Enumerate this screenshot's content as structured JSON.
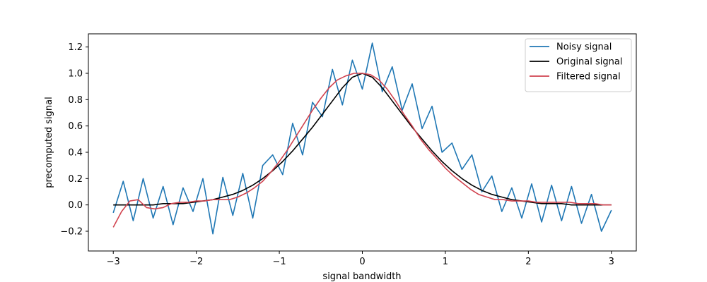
{
  "chart_data": {
    "type": "line",
    "title": "",
    "xlabel": "signal bandwidth",
    "ylabel": "precomputed signal",
    "xlim": [
      -3.3,
      3.3
    ],
    "ylim": [
      -0.35,
      1.3
    ],
    "xticks": [
      -3,
      -2,
      -1,
      0,
      1,
      2,
      3
    ],
    "xtick_labels": [
      "−3",
      "−2",
      "−1",
      "0",
      "1",
      "2",
      "3"
    ],
    "yticks": [
      -0.2,
      0.0,
      0.2,
      0.4,
      0.6,
      0.8,
      1.0,
      1.2
    ],
    "ytick_labels": [
      "−0.2",
      "0.0",
      "0.2",
      "0.4",
      "0.6",
      "0.8",
      "1.0",
      "1.2"
    ],
    "legend_position": "top-right",
    "grid": false,
    "series": [
      {
        "name": "Noisy signal",
        "color": "#1f77b4",
        "x": [
          -3.0,
          -2.88,
          -2.76,
          -2.64,
          -2.52,
          -2.4,
          -2.28,
          -2.16,
          -2.04,
          -1.92,
          -1.8,
          -1.68,
          -1.56,
          -1.44,
          -1.32,
          -1.2,
          -1.08,
          -0.96,
          -0.84,
          -0.72,
          -0.6,
          -0.48,
          -0.36,
          -0.24,
          -0.12,
          0.0,
          0.12,
          0.24,
          0.36,
          0.48,
          0.6,
          0.72,
          0.84,
          0.96,
          1.08,
          1.2,
          1.32,
          1.44,
          1.56,
          1.68,
          1.8,
          1.92,
          2.04,
          2.16,
          2.28,
          2.4,
          2.52,
          2.64,
          2.76,
          2.88,
          3.0
        ],
        "y": [
          -0.06,
          0.18,
          -0.12,
          0.2,
          -0.1,
          0.14,
          -0.15,
          0.13,
          -0.05,
          0.2,
          -0.22,
          0.21,
          -0.08,
          0.24,
          -0.1,
          0.3,
          0.38,
          0.23,
          0.62,
          0.38,
          0.78,
          0.67,
          1.03,
          0.76,
          1.1,
          0.88,
          1.23,
          0.86,
          1.05,
          0.72,
          0.92,
          0.58,
          0.75,
          0.4,
          0.47,
          0.27,
          0.38,
          0.1,
          0.22,
          -0.05,
          0.13,
          -0.1,
          0.16,
          -0.13,
          0.15,
          -0.12,
          0.14,
          -0.14,
          0.08,
          -0.2,
          -0.04
        ]
      },
      {
        "name": "Original signal",
        "color": "#000000",
        "x": [
          -3.0,
          -2.88,
          -2.76,
          -2.64,
          -2.52,
          -2.4,
          -2.28,
          -2.16,
          -2.04,
          -1.92,
          -1.8,
          -1.68,
          -1.56,
          -1.44,
          -1.32,
          -1.2,
          -1.08,
          -0.96,
          -0.84,
          -0.72,
          -0.6,
          -0.48,
          -0.36,
          -0.24,
          -0.12,
          0.0,
          0.12,
          0.24,
          0.36,
          0.48,
          0.6,
          0.72,
          0.84,
          0.96,
          1.08,
          1.2,
          1.32,
          1.44,
          1.56,
          1.68,
          1.8,
          1.92,
          2.04,
          2.16,
          2.28,
          2.4,
          2.52,
          2.64,
          2.76,
          2.88,
          3.0
        ],
        "y": [
          0.0,
          0.0,
          0.0,
          0.0,
          0.0,
          0.01,
          0.01,
          0.01,
          0.02,
          0.03,
          0.04,
          0.06,
          0.08,
          0.11,
          0.15,
          0.2,
          0.26,
          0.33,
          0.41,
          0.5,
          0.59,
          0.69,
          0.79,
          0.89,
          0.97,
          1.0,
          0.97,
          0.89,
          0.79,
          0.69,
          0.59,
          0.5,
          0.41,
          0.33,
          0.26,
          0.2,
          0.15,
          0.11,
          0.08,
          0.06,
          0.04,
          0.03,
          0.02,
          0.01,
          0.01,
          0.01,
          0.0,
          0.0,
          0.0,
          0.0,
          0.0
        ]
      },
      {
        "name": "Filtered signal",
        "color": "#d1434f",
        "x": [
          -3.0,
          -2.9,
          -2.8,
          -2.7,
          -2.6,
          -2.5,
          -2.4,
          -2.3,
          -2.2,
          -2.1,
          -2.0,
          -1.9,
          -1.8,
          -1.7,
          -1.6,
          -1.5,
          -1.4,
          -1.3,
          -1.2,
          -1.1,
          -1.0,
          -0.9,
          -0.8,
          -0.7,
          -0.6,
          -0.5,
          -0.4,
          -0.3,
          -0.2,
          -0.1,
          0.0,
          0.1,
          0.2,
          0.3,
          0.4,
          0.5,
          0.6,
          0.7,
          0.8,
          0.9,
          1.0,
          1.1,
          1.2,
          1.3,
          1.4,
          1.5,
          1.6,
          1.7,
          1.8,
          1.9,
          2.0,
          2.1,
          2.2,
          2.3,
          2.4,
          2.5,
          2.6,
          2.7,
          2.8,
          2.9,
          3.0
        ],
        "y": [
          -0.17,
          -0.05,
          0.03,
          0.04,
          -0.02,
          -0.03,
          -0.02,
          0.01,
          0.02,
          0.02,
          0.03,
          0.03,
          0.04,
          0.04,
          0.04,
          0.06,
          0.09,
          0.13,
          0.18,
          0.25,
          0.33,
          0.42,
          0.52,
          0.62,
          0.72,
          0.81,
          0.89,
          0.95,
          0.98,
          1.0,
          1.0,
          0.99,
          0.95,
          0.88,
          0.79,
          0.69,
          0.6,
          0.5,
          0.42,
          0.35,
          0.28,
          0.22,
          0.17,
          0.12,
          0.08,
          0.06,
          0.04,
          0.04,
          0.03,
          0.03,
          0.03,
          0.02,
          0.02,
          0.02,
          0.02,
          0.02,
          0.01,
          0.01,
          0.01,
          0.0,
          0.0
        ]
      }
    ]
  }
}
